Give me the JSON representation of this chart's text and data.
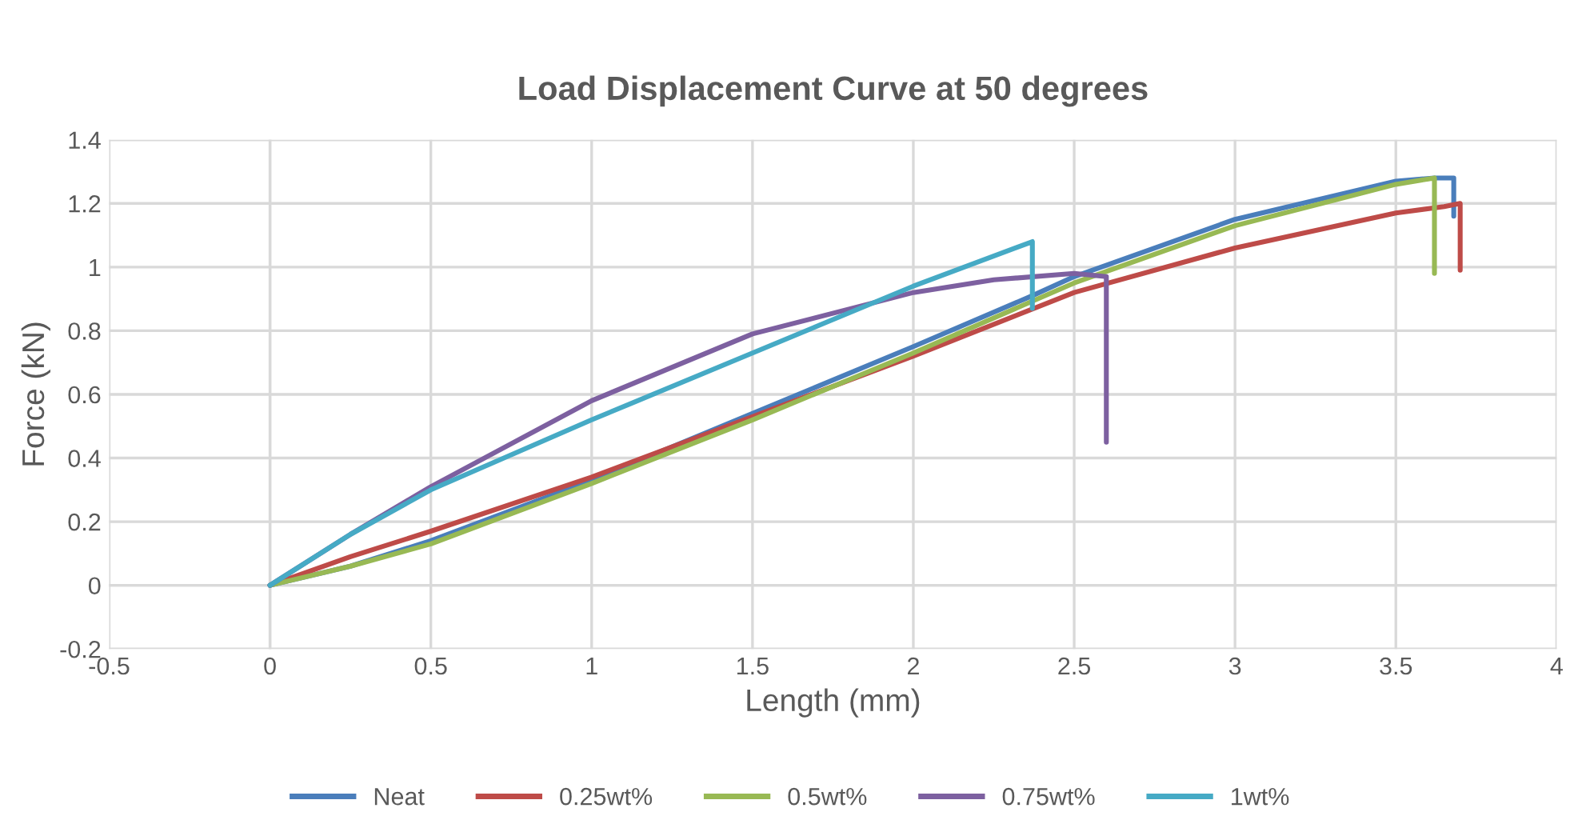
{
  "chart_data": {
    "type": "line",
    "title": "Load Displacement Curve at 50 degrees",
    "xlabel": "Length (mm)",
    "ylabel": "Force (kN)",
    "xlim": [
      -0.5,
      4
    ],
    "xticks": [
      -0.5,
      0,
      0.5,
      1,
      1.5,
      2,
      2.5,
      3,
      3.5,
      4
    ],
    "ylim": [
      -0.2,
      1.4
    ],
    "yticks": [
      -0.2,
      0,
      0.2,
      0.4,
      0.6,
      0.8,
      1,
      1.2,
      1.4
    ],
    "grid": true,
    "legend": "bottom",
    "marker": "none",
    "line_style": "solid",
    "series": [
      {
        "name": "Neat",
        "color": "#4a7ebb",
        "x": [
          0,
          0.25,
          0.5,
          1,
          1.5,
          2,
          2.37,
          2.5,
          3,
          3.5,
          3.62,
          3.68,
          3.68
        ],
        "values": [
          0,
          0.06,
          0.14,
          0.33,
          0.54,
          0.75,
          0.91,
          0.97,
          1.15,
          1.27,
          1.28,
          1.28,
          1.16
        ]
      },
      {
        "name": "0.25wt%",
        "color": "#be4b48",
        "x": [
          0,
          0.25,
          0.5,
          1,
          1.5,
          2,
          2.5,
          3,
          3.5,
          3.65,
          3.7,
          3.7
        ],
        "values": [
          0,
          0.09,
          0.17,
          0.34,
          0.53,
          0.72,
          0.92,
          1.06,
          1.17,
          1.19,
          1.2,
          0.99
        ]
      },
      {
        "name": "0.5wt%",
        "color": "#98b954",
        "x": [
          0,
          0.25,
          0.5,
          1,
          1.5,
          2,
          2.5,
          3,
          3.5,
          3.62,
          3.62
        ],
        "values": [
          0,
          0.06,
          0.13,
          0.32,
          0.52,
          0.73,
          0.95,
          1.13,
          1.26,
          1.28,
          0.98
        ]
      },
      {
        "name": "0.75wt%",
        "color": "#7d60a0",
        "x": [
          0,
          0.25,
          0.5,
          1,
          1.5,
          2,
          2.25,
          2.5,
          2.6,
          2.6
        ],
        "values": [
          0,
          0.16,
          0.31,
          0.58,
          0.79,
          0.92,
          0.96,
          0.98,
          0.97,
          0.45
        ]
      },
      {
        "name": "1wt%",
        "color": "#46aac5",
        "x": [
          0,
          0.25,
          0.5,
          1,
          1.5,
          2,
          2.37,
          2.37
        ],
        "values": [
          0,
          0.16,
          0.3,
          0.52,
          0.73,
          0.94,
          1.08,
          0.87
        ]
      }
    ]
  }
}
